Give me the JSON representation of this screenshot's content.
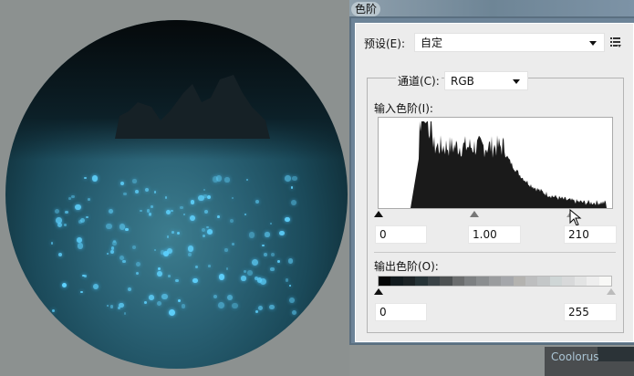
{
  "dialog": {
    "title": "色阶"
  },
  "preset": {
    "label": "预设(E):",
    "value": "自定",
    "menu_icon": "preset-options-icon"
  },
  "channel": {
    "label": "通道(C):",
    "value": "RGB"
  },
  "input_levels": {
    "label": "输入色阶(I):",
    "black": "0",
    "gamma": "1.00",
    "white": "210"
  },
  "output_levels": {
    "label": "输出色阶(O):",
    "black": "0",
    "white": "255"
  },
  "panel_tab": {
    "label": "Coolorus"
  },
  "colors": {
    "accent": "#6d8498",
    "histogram": "#1a1a1a"
  }
}
